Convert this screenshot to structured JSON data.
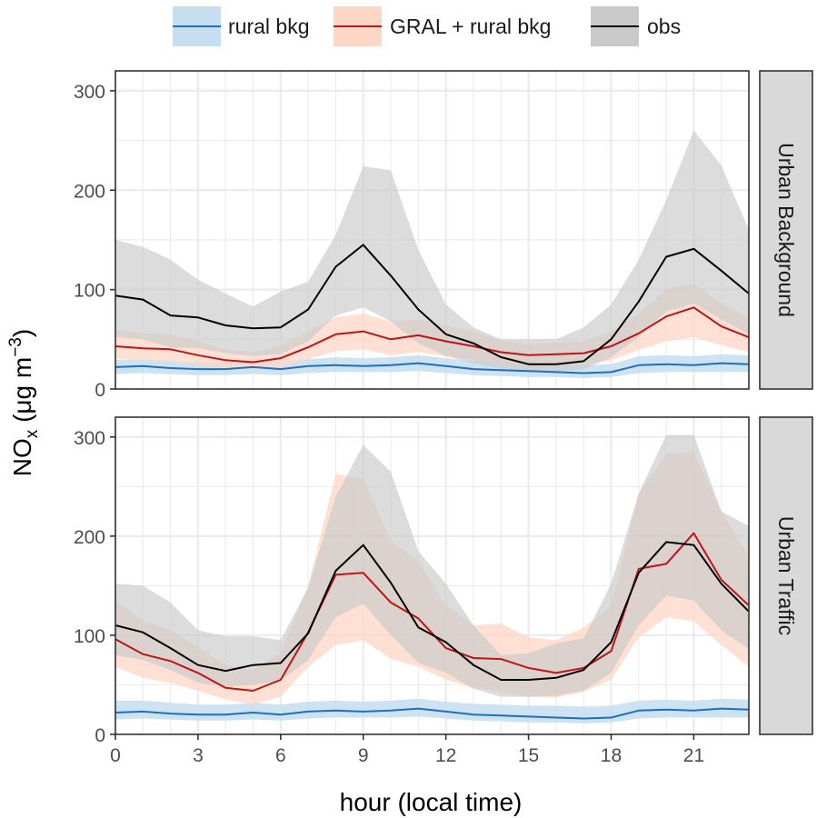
{
  "chart_data": {
    "type": "line",
    "xlabel": "hour (local time)",
    "ylabel": "NO",
    "ylabel_sub": "x",
    "ylabel_unit_open": " (μg m",
    "ylabel_unit_sup": "−3",
    "ylabel_unit_close": ")",
    "xlim": [
      0,
      23
    ],
    "ylim": [
      0,
      320
    ],
    "x_ticks": [
      0,
      3,
      6,
      9,
      12,
      15,
      18,
      21
    ],
    "x_tick_labels": [
      "0",
      "3",
      "6",
      "9",
      "12",
      "15",
      "18",
      "21"
    ],
    "y_ticks": [
      0,
      100,
      200,
      300
    ],
    "y_tick_labels": [
      "0",
      "100",
      "200",
      "300"
    ],
    "grid": true,
    "legend_position": "top",
    "legend": [
      {
        "key": "rural",
        "label": "rural bkg",
        "color": "#1f6fbf",
        "fill": "#c6def0"
      },
      {
        "key": "gral",
        "label": "GRAL + rural bkg",
        "color": "#bd1515",
        "fill": "#fdd7c6"
      },
      {
        "key": "obs",
        "label": "obs",
        "color": "#000000",
        "fill": "#c9c9c9"
      }
    ],
    "hours": [
      0,
      1,
      2,
      3,
      4,
      5,
      6,
      7,
      8,
      9,
      10,
      11,
      12,
      13,
      14,
      15,
      16,
      17,
      18,
      19,
      20,
      21,
      22,
      23
    ],
    "panels": [
      {
        "strip": "Urban Background",
        "series": {
          "rural": {
            "mean": [
              22,
              23,
              21,
              20,
              20,
              22,
              20,
              23,
              24,
              23,
              24,
              26,
              23,
              20,
              19,
              18,
              17,
              16,
              17,
              24,
              25,
              24,
              26,
              25
            ],
            "lower": [
              15,
              16,
              15,
              14,
              14,
              15,
              14,
              16,
              17,
              17,
              17,
              18,
              16,
              14,
              13,
              12,
              12,
              11,
              12,
              16,
              17,
              17,
              17,
              17
            ],
            "upper": [
              29,
              30,
              28,
              27,
              27,
              30,
              27,
              30,
              32,
              31,
              32,
              34,
              31,
              28,
              27,
              26,
              25,
              24,
              25,
              33,
              34,
              33,
              35,
              34
            ]
          },
          "gral": {
            "mean": [
              43,
              41,
              40,
              34,
              29,
              27,
              31,
              42,
              55,
              58,
              50,
              54,
              48,
              43,
              37,
              34,
              35,
              36,
              43,
              56,
              73,
              82,
              63,
              52
            ],
            "lower": [
              30,
              29,
              28,
              24,
              21,
              19,
              22,
              30,
              38,
              40,
              34,
              37,
              33,
              29,
              25,
              23,
              23,
              24,
              29,
              39,
              48,
              52,
              44,
              37
            ],
            "upper": [
              60,
              56,
              55,
              48,
              40,
              37,
              44,
              58,
              72,
              76,
              68,
              70,
              64,
              58,
              49,
              45,
              47,
              48,
              58,
              76,
              100,
              106,
              86,
              72
            ]
          },
          "obs": {
            "mean": [
              94,
              90,
              74,
              72,
              64,
              61,
              62,
              80,
              123,
              145,
              114,
              80,
              55,
              46,
              32,
              25,
              25,
              28,
              50,
              88,
              133,
              141,
              119,
              96
            ],
            "lower": [
              52,
              50,
              42,
              41,
              36,
              33,
              35,
              48,
              74,
              82,
              68,
              46,
              33,
              26,
              20,
              17,
              17,
              20,
              32,
              52,
              78,
              86,
              70,
              55
            ],
            "upper": [
              150,
              143,
              130,
              110,
              96,
              83,
              98,
              108,
              155,
              224,
              220,
              140,
              85,
              62,
              50,
              50,
              50,
              62,
              85,
              130,
              190,
              260,
              225,
              160
            ]
          }
        }
      },
      {
        "strip": "Urban Traffic",
        "series": {
          "rural": {
            "mean": [
              22,
              23,
              21,
              20,
              20,
              22,
              20,
              23,
              24,
              23,
              24,
              26,
              23,
              20,
              19,
              18,
              17,
              16,
              17,
              24,
              25,
              24,
              26,
              25
            ],
            "lower": [
              15,
              16,
              15,
              14,
              14,
              15,
              14,
              16,
              17,
              17,
              17,
              18,
              16,
              14,
              13,
              12,
              12,
              11,
              12,
              16,
              17,
              17,
              17,
              17
            ],
            "upper": [
              34,
              34,
              32,
              30,
              30,
              32,
              30,
              33,
              34,
              33,
              34,
              36,
              33,
              31,
              30,
              29,
              29,
              28,
              29,
              34,
              35,
              34,
              36,
              35
            ]
          },
          "gral": {
            "mean": [
              96,
              81,
              74,
              62,
              47,
              44,
              55,
              103,
              161,
              163,
              133,
              117,
              87,
              77,
              76,
              67,
              62,
              67,
              84,
              167,
              172,
              203,
              156,
              130
            ],
            "lower": [
              68,
              57,
              52,
              44,
              35,
              30,
              38,
              68,
              90,
              95,
              76,
              68,
              55,
              47,
              43,
              38,
              37,
              43,
              55,
              98,
              118,
              114,
              90,
              68
            ],
            "upper": [
              135,
              115,
              105,
              88,
              70,
              65,
              82,
              150,
              263,
              258,
              195,
              175,
              130,
              110,
              112,
              98,
              95,
              108,
              130,
              243,
              283,
              285,
              225,
              180
            ]
          },
          "obs": {
            "mean": [
              110,
              103,
              87,
              70,
              64,
              70,
              72,
              102,
              165,
              191,
              153,
              108,
              93,
              70,
              55,
              55,
              57,
              65,
              93,
              163,
              194,
              191,
              152,
              124
            ],
            "lower": [
              80,
              75,
              65,
              52,
              48,
              50,
              54,
              75,
              118,
              132,
              100,
              72,
              62,
              46,
              38,
              38,
              39,
              44,
              62,
              110,
              140,
              135,
              105,
              86
            ],
            "upper": [
              152,
              150,
              133,
              105,
              99,
              99,
              95,
              148,
              240,
              292,
              265,
              185,
              152,
              110,
              80,
              82,
              92,
              97,
              152,
              243,
              302,
              302,
              225,
              210
            ]
          }
        }
      }
    ]
  }
}
